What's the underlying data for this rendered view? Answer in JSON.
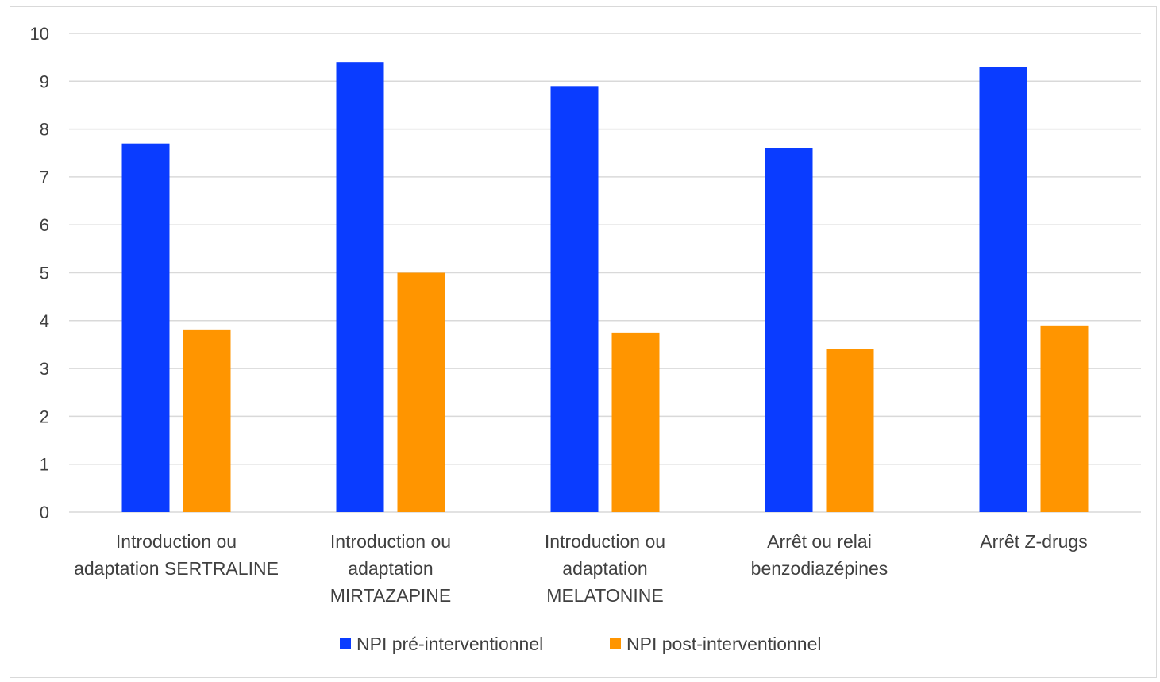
{
  "chart_data": {
    "type": "bar",
    "categories": [
      [
        "Introduction ou",
        "adaptation SERTRALINE"
      ],
      [
        "Introduction ou",
        "adaptation",
        "MIRTAZAPINE"
      ],
      [
        "Introduction ou",
        "adaptation",
        "MELATONINE"
      ],
      [
        "Arrêt ou relai",
        "benzodiazépines"
      ],
      [
        "Arrêt Z-drugs"
      ]
    ],
    "series": [
      {
        "name": "NPI pré-interventionnel",
        "color": "#0a3cff",
        "values": [
          7.7,
          9.4,
          8.9,
          7.6,
          9.3
        ]
      },
      {
        "name": "NPI post-interventionnel",
        "color": "#ff9500",
        "values": [
          3.8,
          5.0,
          3.75,
          3.4,
          3.9
        ]
      }
    ],
    "ylim": [
      0,
      10
    ],
    "yticks": [
      "0",
      "1",
      "2",
      "3",
      "4",
      "5",
      "6",
      "7",
      "8",
      "9",
      "10"
    ],
    "grid": true,
    "gridColor": "#d9d9d9",
    "legend": "bottom",
    "title": "",
    "xlabel": "",
    "ylabel": ""
  }
}
